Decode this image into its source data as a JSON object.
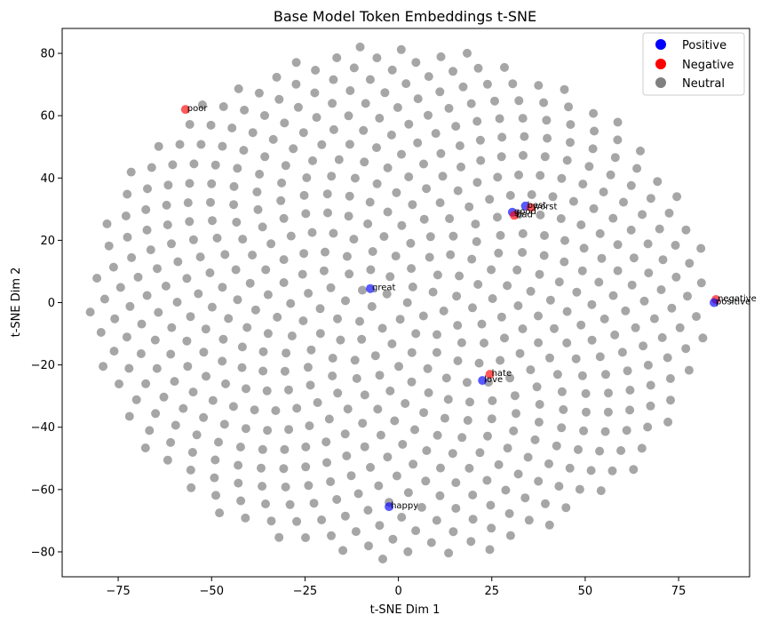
{
  "chart_data": {
    "type": "scatter",
    "title": "Base Model Token Embeddings t-SNE",
    "xlabel": "t-SNE Dim 1",
    "ylabel": "t-SNE Dim 2",
    "xlim": [
      -90,
      94
    ],
    "ylim": [
      -88,
      88
    ],
    "xticks": [
      -75,
      -50,
      -25,
      0,
      25,
      50,
      75
    ],
    "yticks": [
      -80,
      -60,
      -40,
      -20,
      0,
      20,
      40,
      60,
      80
    ],
    "grid": false,
    "legend_position": "top-right",
    "legend": [
      {
        "label": "Positive",
        "color": "#0000ff"
      },
      {
        "label": "Negative",
        "color": "#ff0000"
      },
      {
        "label": "Neutral",
        "color": "#808080"
      }
    ],
    "neutral_color": "#808080",
    "highlighted_points": [
      {
        "label": "poor",
        "x": -57,
        "y": 62,
        "category": "Negative",
        "color": "#ff0000"
      },
      {
        "label": "best",
        "x": 34,
        "y": 31,
        "category": "Positive",
        "color": "#0000ff"
      },
      {
        "label": "worst",
        "x": 35.5,
        "y": 30.5,
        "category": "Negative",
        "color": "#ff0000"
      },
      {
        "label": "good",
        "x": 30.5,
        "y": 29,
        "category": "Positive",
        "color": "#0000ff"
      },
      {
        "label": "bad",
        "x": 31,
        "y": 28,
        "category": "Negative",
        "color": "#ff0000"
      },
      {
        "label": "great",
        "x": -7.5,
        "y": 4.5,
        "category": "Positive",
        "color": "#0000ff"
      },
      {
        "label": "negative",
        "x": 85,
        "y": 1,
        "category": "Negative",
        "color": "#ff0000"
      },
      {
        "label": "positive",
        "x": 84.5,
        "y": 0,
        "category": "Positive",
        "color": "#0000ff"
      },
      {
        "label": "hate",
        "x": 24.5,
        "y": -23,
        "category": "Negative",
        "color": "#ff0000"
      },
      {
        "label": "love",
        "x": 22.5,
        "y": -25,
        "category": "Positive",
        "color": "#0000ff"
      },
      {
        "label": "happy",
        "x": -2.5,
        "y": -65.5,
        "category": "Positive",
        "color": "#0000ff"
      }
    ],
    "neutral_points": {
      "count": 600,
      "max_radius": 83,
      "distribution": "sunflower spiral"
    }
  }
}
